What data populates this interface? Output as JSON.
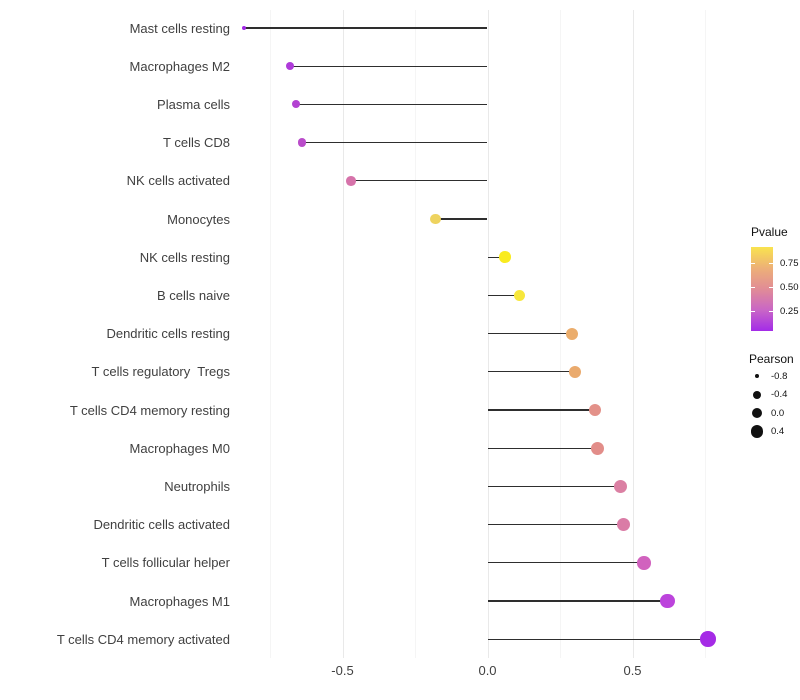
{
  "chart_data": {
    "type": "lollipop",
    "title": "",
    "xlabel": "",
    "ylabel": "",
    "x_tick_labels": [
      "-0.5",
      "0.0",
      "0.5"
    ],
    "x_tick_values": [
      -0.5,
      0.0,
      0.5
    ],
    "grid_major": [
      -0.5,
      0.0,
      0.5
    ],
    "grid_minor": [
      -0.75,
      -0.25,
      0.25,
      0.75
    ],
    "xlim": [
      -0.87,
      0.89
    ],
    "baseline_value": 0.0,
    "points": [
      {
        "label": "Mast cells resting",
        "pearson": -0.84,
        "color": "#A228E6",
        "size": 4
      },
      {
        "label": "Macrophages M2",
        "pearson": -0.68,
        "color": "#AF3BDA",
        "size": 8
      },
      {
        "label": "Plasma cells",
        "pearson": -0.66,
        "color": "#B342D2",
        "size": 8
      },
      {
        "label": "T cells CD8",
        "pearson": -0.64,
        "color": "#BA4CCA",
        "size": 8.5
      },
      {
        "label": "NK cells activated",
        "pearson": -0.47,
        "color": "#D673AA",
        "size": 9.5
      },
      {
        "label": "Monocytes",
        "pearson": -0.18,
        "color": "#EED35F",
        "size": 10.5
      },
      {
        "label": "NK cells resting",
        "pearson": 0.06,
        "color": "#F9EB20",
        "size": 11.5
      },
      {
        "label": "B cells naive",
        "pearson": 0.11,
        "color": "#F7E73B",
        "size": 11.5
      },
      {
        "label": "Dendritic cells resting",
        "pearson": 0.29,
        "color": "#EBAD6C",
        "size": 12
      },
      {
        "label": "T cells regulatory  Tregs",
        "pearson": 0.3,
        "color": "#EAAA6D",
        "size": 12
      },
      {
        "label": "T cells CD4 memory resting",
        "pearson": 0.37,
        "color": "#E39189",
        "size": 12.5
      },
      {
        "label": "Macrophages M0",
        "pearson": 0.38,
        "color": "#E28D89",
        "size": 13
      },
      {
        "label": "Neutrophils",
        "pearson": 0.46,
        "color": "#DB80A3",
        "size": 13
      },
      {
        "label": "Dendritic cells activated",
        "pearson": 0.47,
        "color": "#DA7CA6",
        "size": 13
      },
      {
        "label": "T cells follicular helper",
        "pearson": 0.54,
        "color": "#D162BE",
        "size": 13.5
      },
      {
        "label": "Macrophages M1",
        "pearson": 0.62,
        "color": "#BC44DC",
        "size": 14.5
      },
      {
        "label": "T cells CD4 memory activated",
        "pearson": 0.76,
        "color": "#A52BE6",
        "size": 15.5
      }
    ],
    "legend_pvalue": {
      "title": "Pvalue",
      "tick_labels": [
        "0.75",
        "0.50",
        "0.25"
      ],
      "gradient_top_to_bottom": [
        "#F9E34E",
        "#EDB077",
        "#E18C96",
        "#C966C6",
        "#A32BE8"
      ]
    },
    "legend_pearson": {
      "title": "Pearson",
      "entries": [
        {
          "label": "-0.8",
          "size": 4
        },
        {
          "label": "-0.4",
          "size": 8
        },
        {
          "label": "0.0",
          "size": 10.5
        },
        {
          "label": "0.4",
          "size": 12.5
        }
      ]
    }
  }
}
